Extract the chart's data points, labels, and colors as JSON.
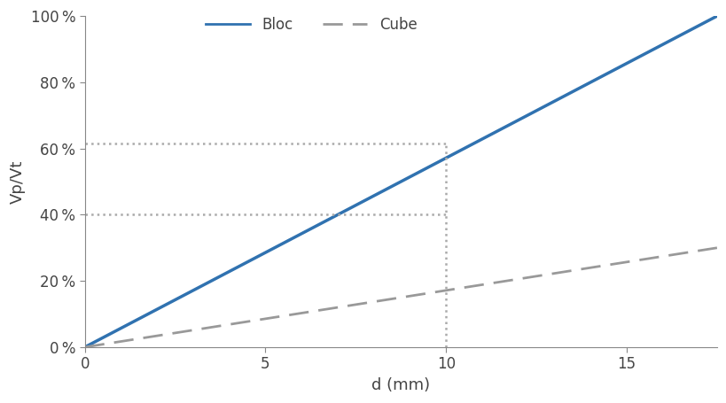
{
  "x_max": 17.5,
  "bloc_slope": 5.714,
  "cube_slope": 1.714,
  "dot_line_y1": 40.0,
  "dot_line_y2": 61.5,
  "dot_line_x": 10.0,
  "xlabel": "d (mm)",
  "ylabel": "Vp/Vt",
  "bloc_label": "Bloc",
  "cube_label": "Cube",
  "bloc_color": "#3072B0",
  "cube_color": "#999999",
  "dot_color": "#aaaaaa",
  "yticks": [
    0,
    20,
    40,
    60,
    80,
    100
  ],
  "xticks": [
    0,
    5,
    10,
    15
  ],
  "xlim": [
    0,
    17.5
  ],
  "ylim": [
    0,
    100
  ],
  "figsize": [
    8.2,
    4.55
  ],
  "dpi": 100
}
